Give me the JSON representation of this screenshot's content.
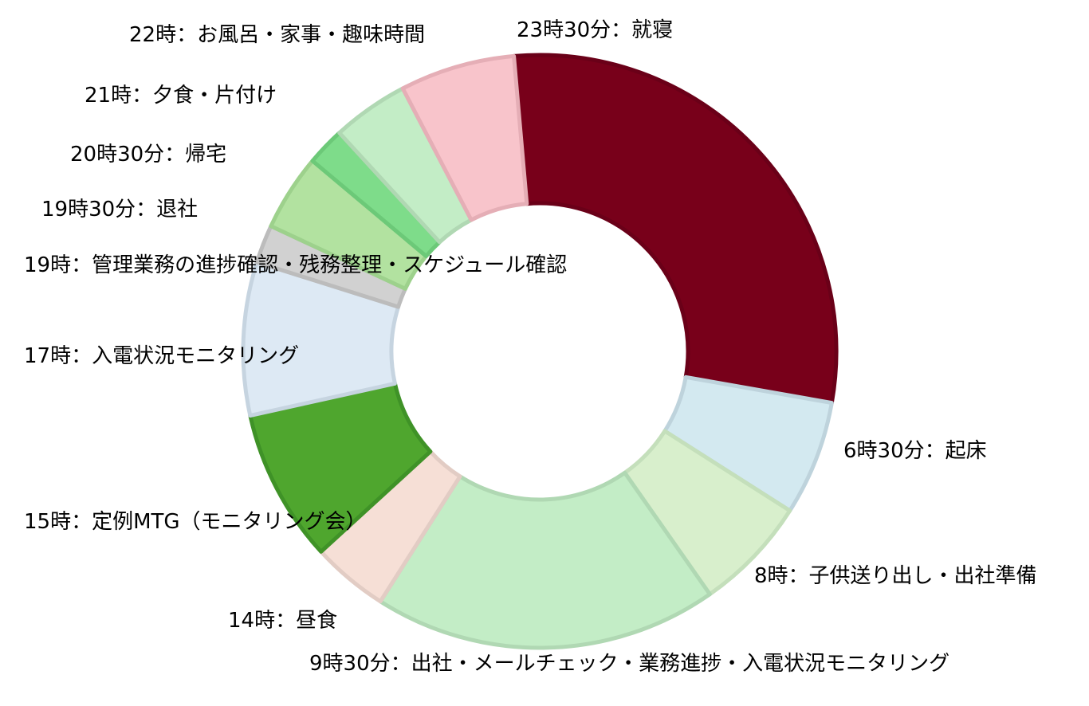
{
  "chart_data": {
    "type": "pie",
    "donut": true,
    "title": "",
    "start_angle_deg": -5,
    "slices": [
      {
        "label": "23時30分：就寝",
        "value": 7.0,
        "color": "#78001a",
        "border": "#6a0018"
      },
      {
        "label": "6時30分：起床",
        "value": 1.5,
        "color": "#d3e9f0",
        "border": "#bed3dc"
      },
      {
        "label": "8時：子供送り出し・出社準備",
        "value": 1.5,
        "color": "#d8efcc",
        "border": "#c4dfbb"
      },
      {
        "label": "9時30分：出社・メールチェック・業務進捗・入電状況モニタリング",
        "value": 4.5,
        "color": "#c3edc6",
        "border": "#b0d8b3"
      },
      {
        "label": "14時：昼食",
        "value": 1.0,
        "color": "#f6dfd6",
        "border": "#e2ccc4"
      },
      {
        "label": "15時：定例MTG（モニタリング会）",
        "value": 2.0,
        "color": "#4fa62e",
        "border": "#3f9227"
      },
      {
        "label": "17時：入電状況モニタリング",
        "value": 2.0,
        "color": "#dde9f4",
        "border": "#c6d4e0"
      },
      {
        "label": "19時：管理業務の進捗確認・残務整理・スケジュール確認",
        "value": 0.5,
        "color": "#d1d1d1",
        "border": "#bcbcbc"
      },
      {
        "label": "19時30分：退社",
        "value": 1.0,
        "color": "#b2e2a0",
        "border": "#9dd18c"
      },
      {
        "label": "20時30分：帰宅",
        "value": 0.5,
        "color": "#7edc8a",
        "border": "#6cc978"
      },
      {
        "label": "21時：夕食・片付け",
        "value": 1.0,
        "color": "#c3edc6",
        "border": "#b0d8b3"
      },
      {
        "label": "22時：お風呂・家事・趣味時間",
        "value": 1.5,
        "color": "#f8c4cb",
        "border": "#e5aeb6"
      }
    ]
  }
}
